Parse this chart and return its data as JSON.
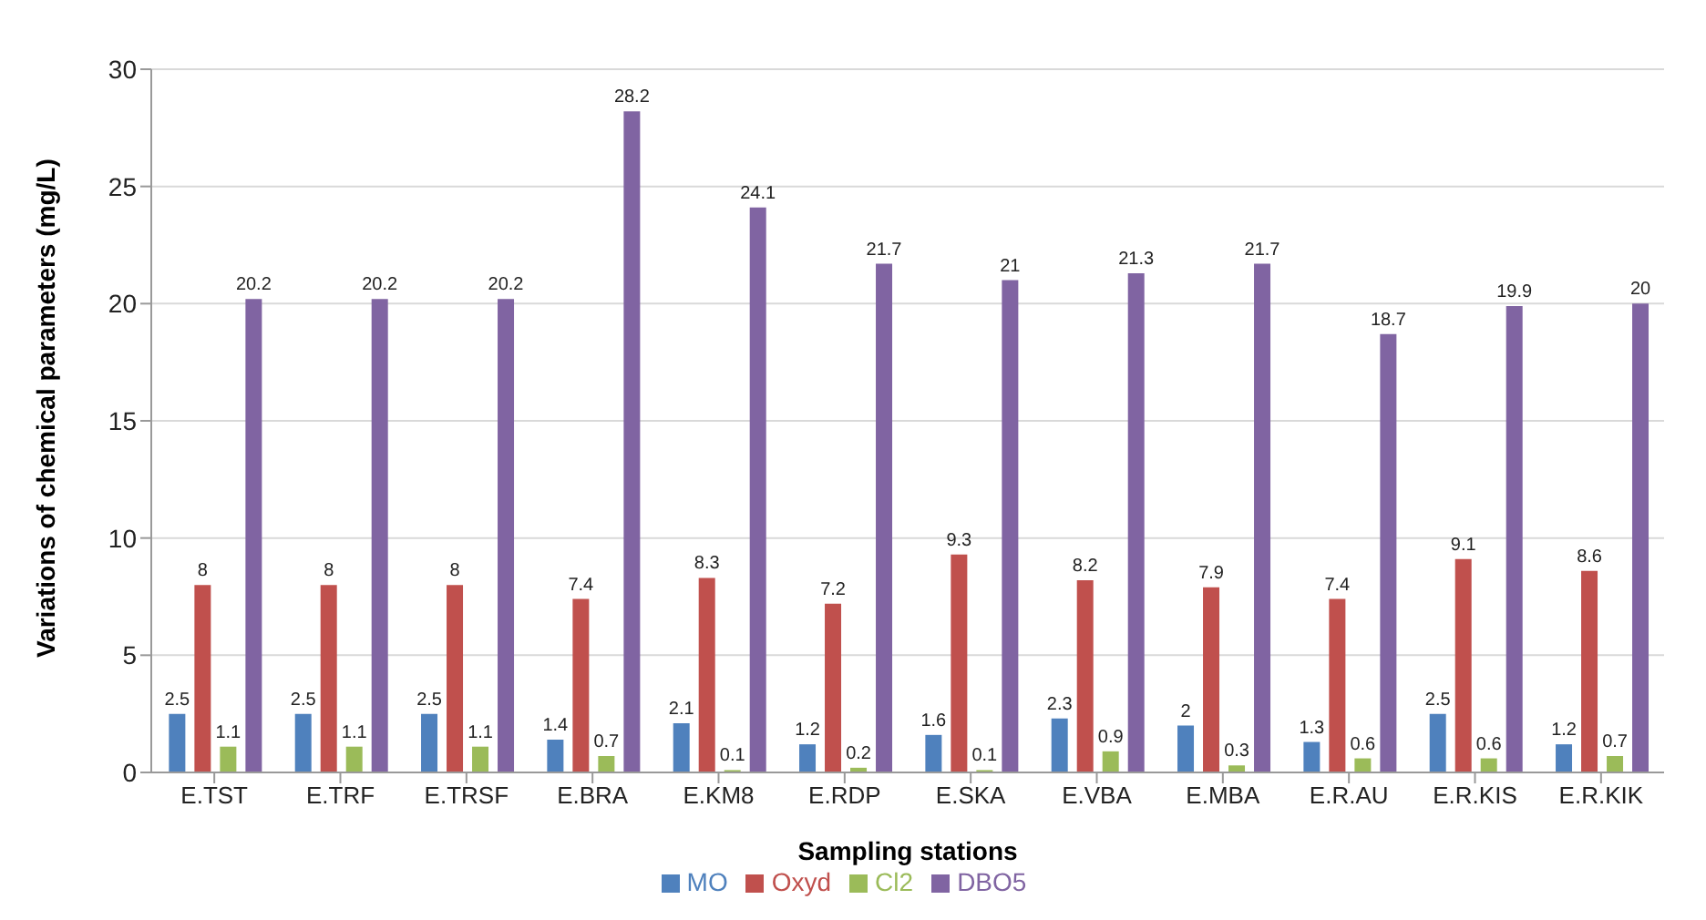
{
  "chart_data": {
    "type": "bar",
    "xlabel": "Sampling stations",
    "ylabel": "Variations of chemical parameters (mg/L)",
    "categories": [
      "E.TST",
      "E.TRF",
      "E.TRSF",
      "E.BRA",
      "E.KM8",
      "E.RDP",
      "E.SKA",
      "E.VBA",
      "E.MBA",
      "E.R.AU",
      "E.R.KIS",
      "E.R.KIK"
    ],
    "series": [
      {
        "name": "MO",
        "color": "#4f81bd",
        "values": [
          2.5,
          2.5,
          2.5,
          1.4,
          2.1,
          1.2,
          1.6,
          2.3,
          2,
          1.3,
          2.5,
          1.2
        ]
      },
      {
        "name": "Oxyd",
        "color": "#c0504d",
        "values": [
          8,
          8,
          8,
          7.4,
          8.3,
          7.2,
          9.3,
          8.2,
          7.9,
          7.4,
          9.1,
          8.6
        ]
      },
      {
        "name": "Cl2",
        "color": "#9bbb59",
        "values": [
          1.1,
          1.1,
          1.1,
          0.7,
          0.1,
          0.2,
          0.1,
          0.9,
          0.3,
          0.6,
          0.6,
          0.7
        ]
      },
      {
        "name": "DBO5",
        "color": "#8064a2",
        "values": [
          20.2,
          20.2,
          20.2,
          28.2,
          24.1,
          21.7,
          21,
          21.3,
          21.7,
          18.7,
          19.9,
          20
        ]
      }
    ],
    "ylim": [
      0,
      30
    ],
    "yticks": [
      0,
      5,
      10,
      15,
      20,
      25,
      30
    ],
    "grid": "y",
    "legend": "bottom",
    "data_labels": true
  }
}
